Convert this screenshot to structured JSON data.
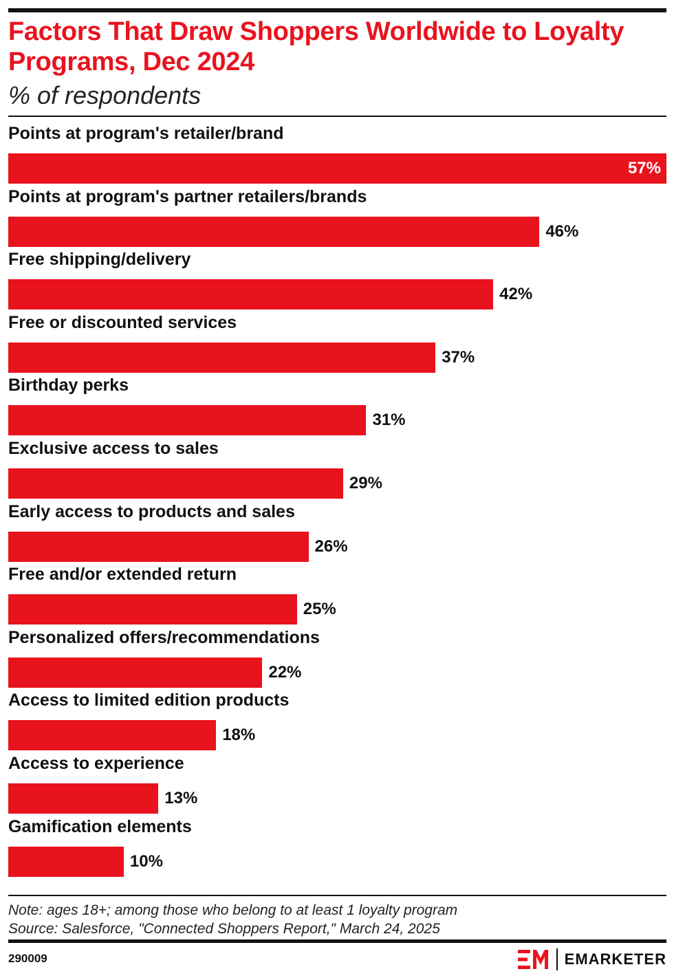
{
  "header": {
    "title": "Factors That Draw Shoppers Worldwide to Loyalty Programs, Dec 2024",
    "subtitle": "% of respondents"
  },
  "chart_data": {
    "type": "bar",
    "orientation": "horizontal",
    "categories": [
      "Points at program's retailer/brand",
      "Points at program's partner retailers/brands",
      "Free shipping/delivery",
      "Free or discounted services",
      "Birthday perks",
      "Exclusive access to sales",
      "Early access to products and sales",
      "Free and/or extended return",
      "Personalized offers/recommendations",
      "Access to limited edition products",
      "Access to experience",
      "Gamification elements"
    ],
    "values": [
      57,
      46,
      42,
      37,
      31,
      29,
      26,
      25,
      22,
      18,
      13,
      10
    ],
    "value_labels": [
      "57%",
      "46%",
      "42%",
      "37%",
      "31%",
      "29%",
      "26%",
      "25%",
      "22%",
      "18%",
      "13%",
      "10%"
    ],
    "xlim": [
      0,
      57
    ],
    "grid": false,
    "bar_color": "#e9131e"
  },
  "footer": {
    "note": "Note: ages 18+; among those who belong to at least 1 loyalty program",
    "source": "Source: Salesforce, \"Connected Shoppers Report,\" March 24, 2025",
    "chart_id": "290009",
    "brand": "EMARKETER",
    "brand_icon": "emarketer-logo-icon"
  }
}
